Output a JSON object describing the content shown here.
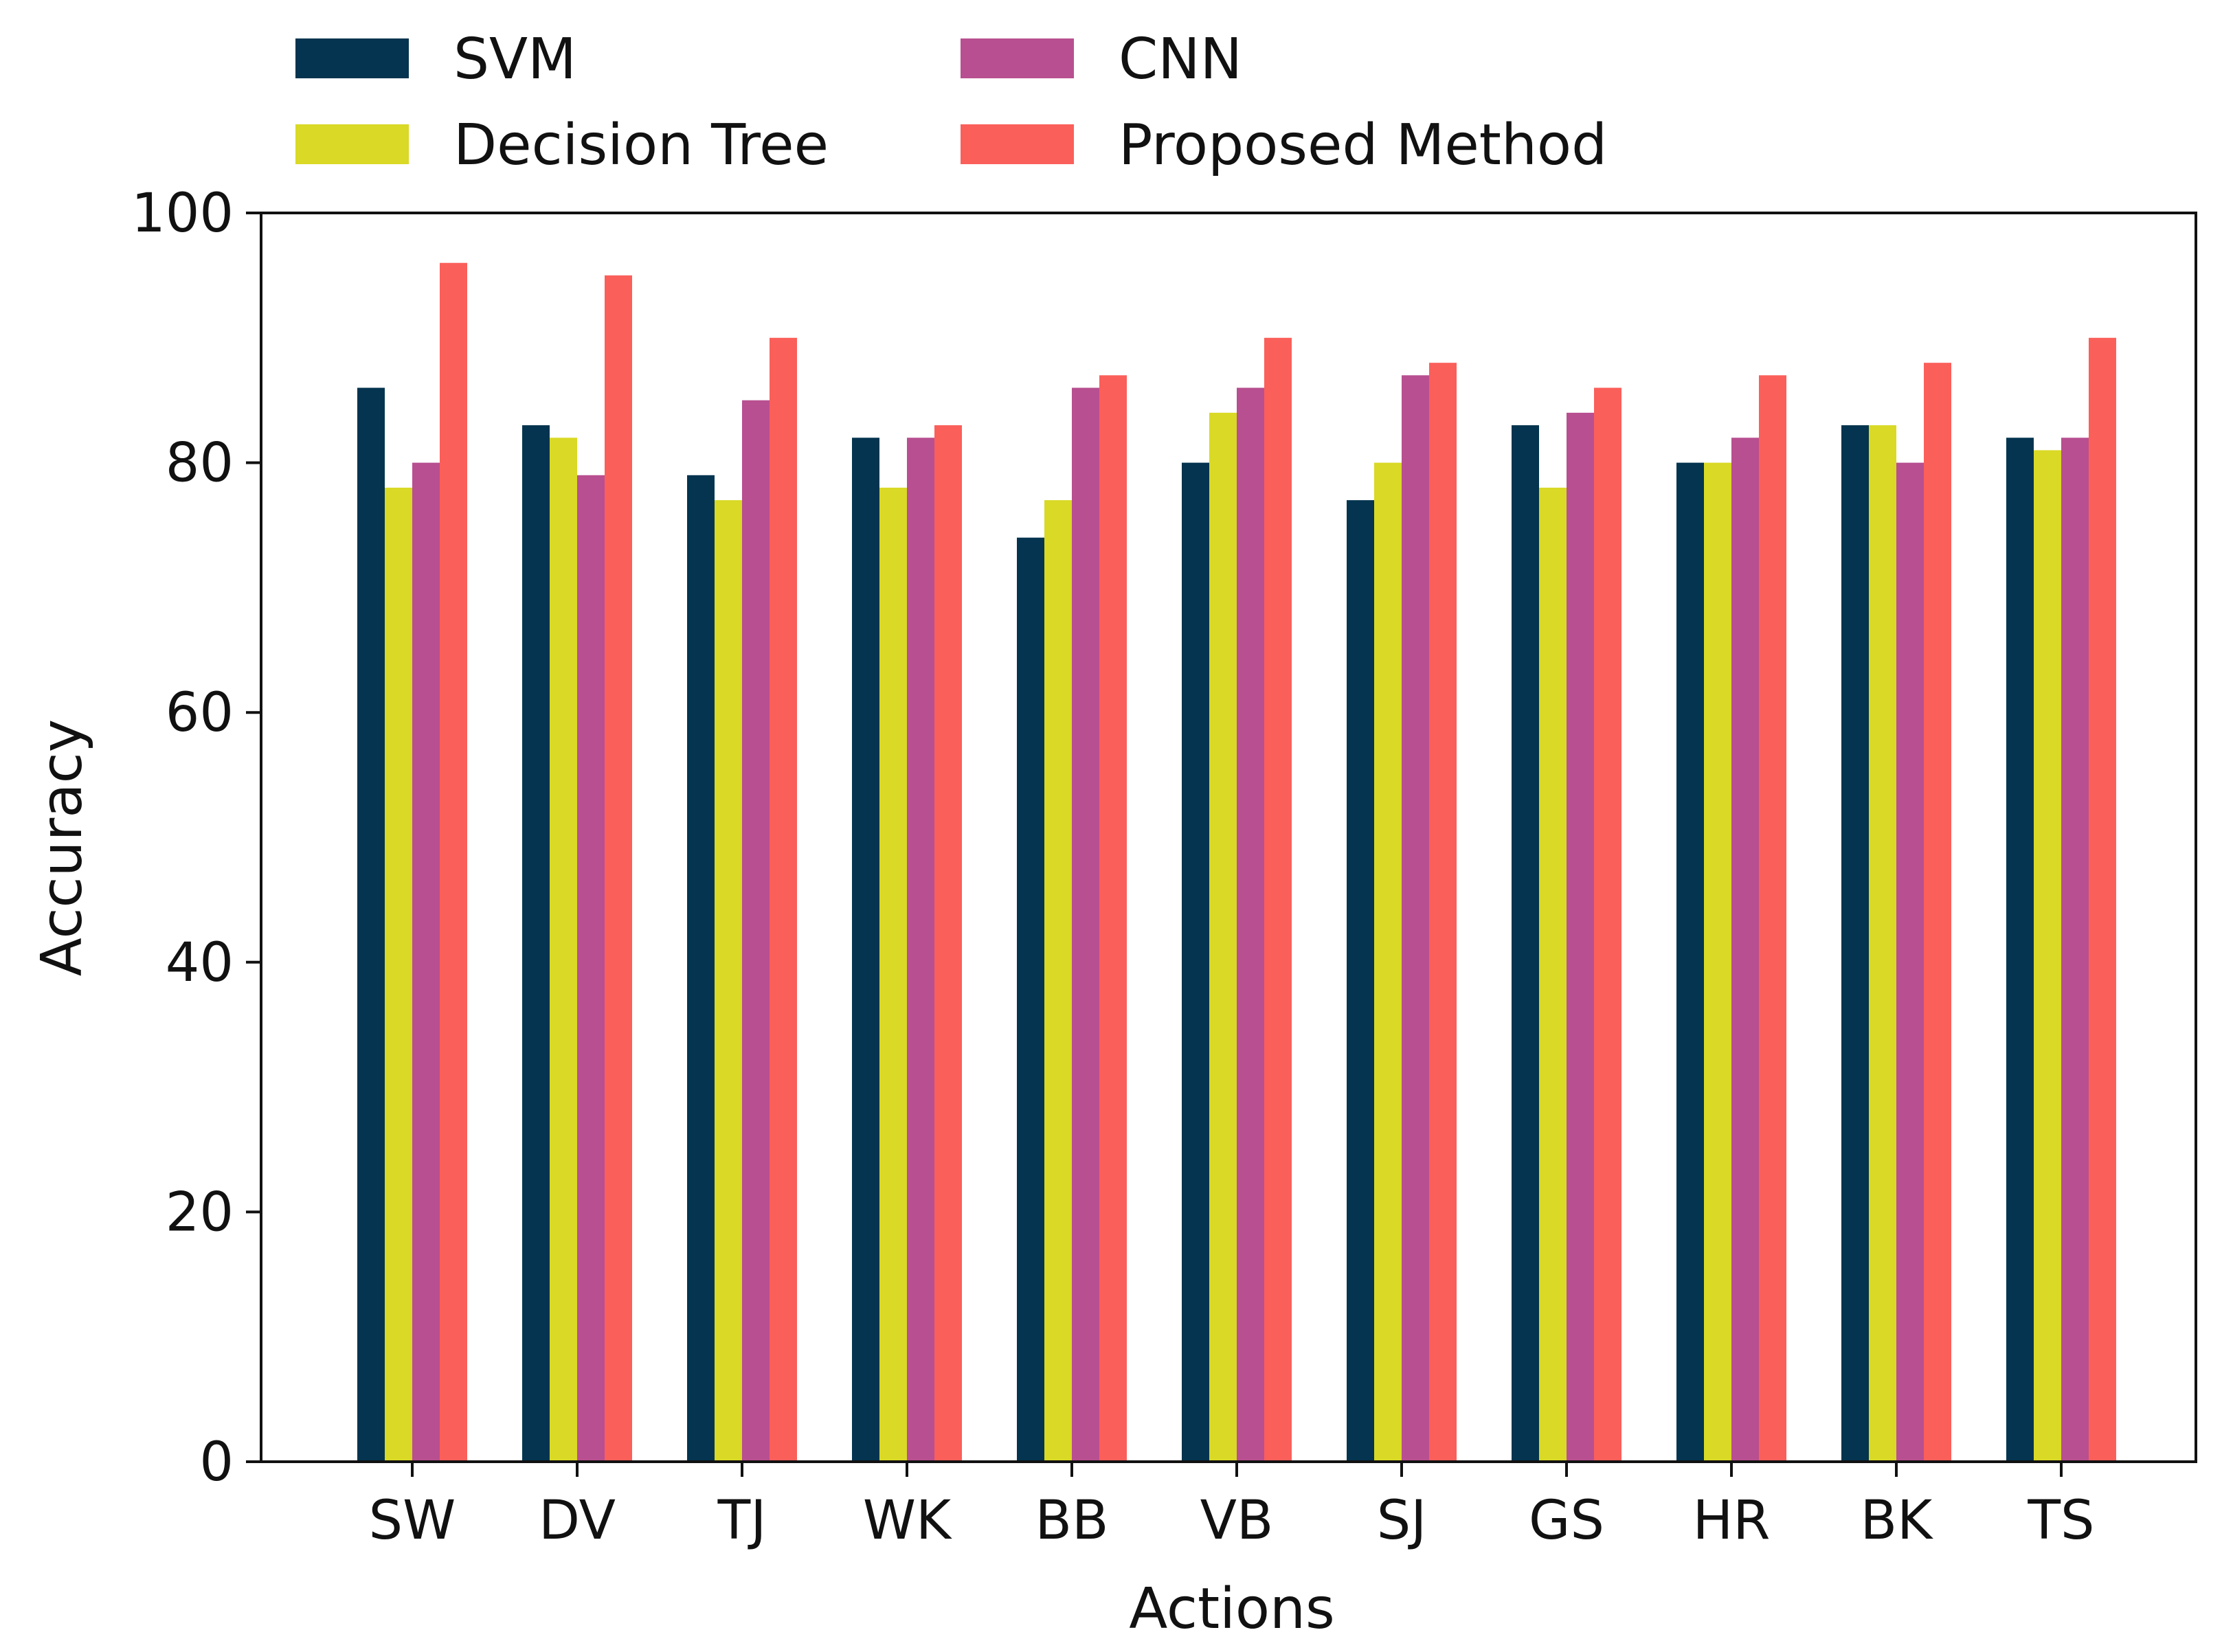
{
  "chart_data": {
    "type": "bar",
    "title": "",
    "xlabel": "Actions",
    "ylabel": "Accuracy",
    "ylim": [
      0,
      100
    ],
    "yticks": [
      0,
      20,
      40,
      60,
      80,
      100
    ],
    "grid": false,
    "legend_position": "top-left, outside plot, two columns",
    "categories": [
      "SW",
      "DV",
      "TJ",
      "WK",
      "BB",
      "VB",
      "SJ",
      "GS",
      "HR",
      "BK",
      "TS"
    ],
    "series": [
      {
        "name": "SVM",
        "color": "#04344f",
        "values": [
          86,
          83,
          79,
          82,
          74,
          80,
          77,
          83,
          80,
          83,
          82
        ]
      },
      {
        "name": "Decision Tree",
        "color": "#d9d926",
        "values": [
          78,
          82,
          77,
          78,
          77,
          84,
          80,
          78,
          80,
          83,
          81
        ]
      },
      {
        "name": "CNN",
        "color": "#b84f90",
        "values": [
          80,
          79,
          85,
          82,
          86,
          86,
          87,
          84,
          82,
          80,
          82
        ]
      },
      {
        "name": "Proposed Method",
        "color": "#fb5f5a",
        "values": [
          96,
          95,
          90,
          83,
          87,
          90,
          88,
          86,
          87,
          88,
          90
        ]
      }
    ]
  }
}
